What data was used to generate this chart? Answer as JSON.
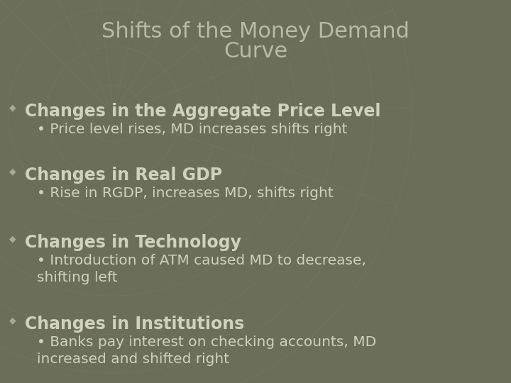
{
  "title_line1": "Shifts of the Money Demand",
  "title_line2": "Curve",
  "bg_color": "#6b6e5a",
  "title_color": "#b8baaa",
  "text_color": "#d0d1bf",
  "bullet_color": "#a8aa98",
  "grid_color": "#7a7d6a",
  "title_fontsize": 22,
  "body_fontsize": 17,
  "sub_fontsize": 14.5,
  "items": [
    {
      "header": "Changes in the Aggregate Price Level",
      "sub": [
        "Price level rises, MD increases shifts right"
      ]
    },
    {
      "header": "Changes in Real GDP",
      "sub": [
        "Rise in RGDP, increases MD, shifts right"
      ]
    },
    {
      "header": "Changes in Technology",
      "sub": [
        "Introduction of ATM caused MD to decrease,\nshifting left"
      ]
    },
    {
      "header": "Changes in Institutions",
      "sub": [
        "Banks pay interest on checking accounts, MD\nincreased and shifted right"
      ]
    }
  ]
}
